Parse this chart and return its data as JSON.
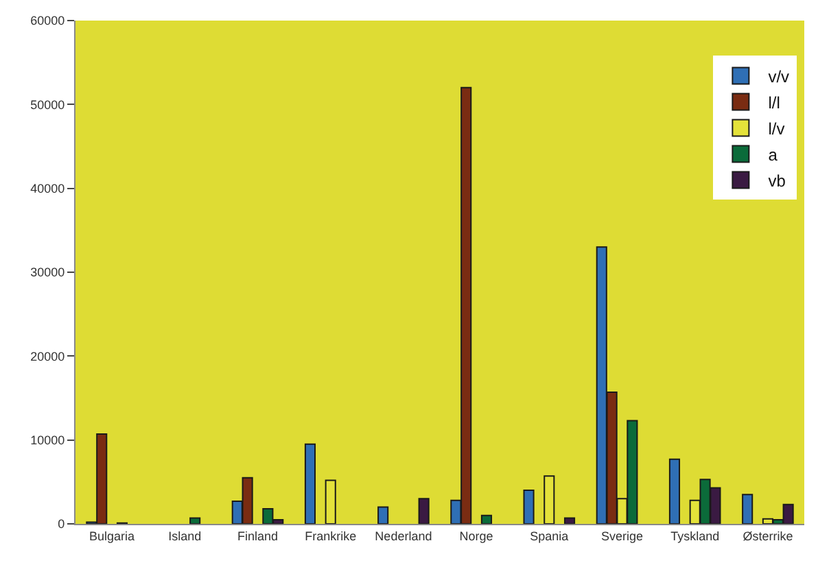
{
  "chart_data": {
    "type": "bar",
    "categories": [
      "Bulgaria",
      "Island",
      "Finland",
      "Frankrike",
      "Nederland",
      "Norge",
      "Spania",
      "Sverige",
      "Tyskland",
      "Østerrike"
    ],
    "series": [
      {
        "name": "v/v",
        "color": "#2f6fb5",
        "values": [
          200,
          null,
          2700,
          9500,
          2000,
          2800,
          4000,
          33000,
          7700,
          3500
        ]
      },
      {
        "name": "l/l",
        "color": "#7a2c12",
        "values": [
          10700,
          null,
          5500,
          null,
          null,
          52000,
          null,
          15700,
          null,
          null
        ]
      },
      {
        "name": "l/v",
        "color": "#e4e23a",
        "values": [
          null,
          null,
          null,
          5200,
          null,
          null,
          5700,
          3000,
          2800,
          600
        ]
      },
      {
        "name": "a",
        "color": "#0b6b3a",
        "values": [
          100,
          700,
          1800,
          null,
          null,
          1000,
          null,
          12300,
          5300,
          500
        ]
      },
      {
        "name": "vb",
        "color": "#3a1a42",
        "values": [
          null,
          null,
          500,
          null,
          3000,
          null,
          700,
          null,
          4300,
          2300
        ]
      }
    ],
    "ylim": [
      0,
      60000
    ],
    "yticks": [
      0,
      10000,
      20000,
      30000,
      40000,
      50000,
      60000
    ],
    "grid": false,
    "legend": "top right"
  }
}
